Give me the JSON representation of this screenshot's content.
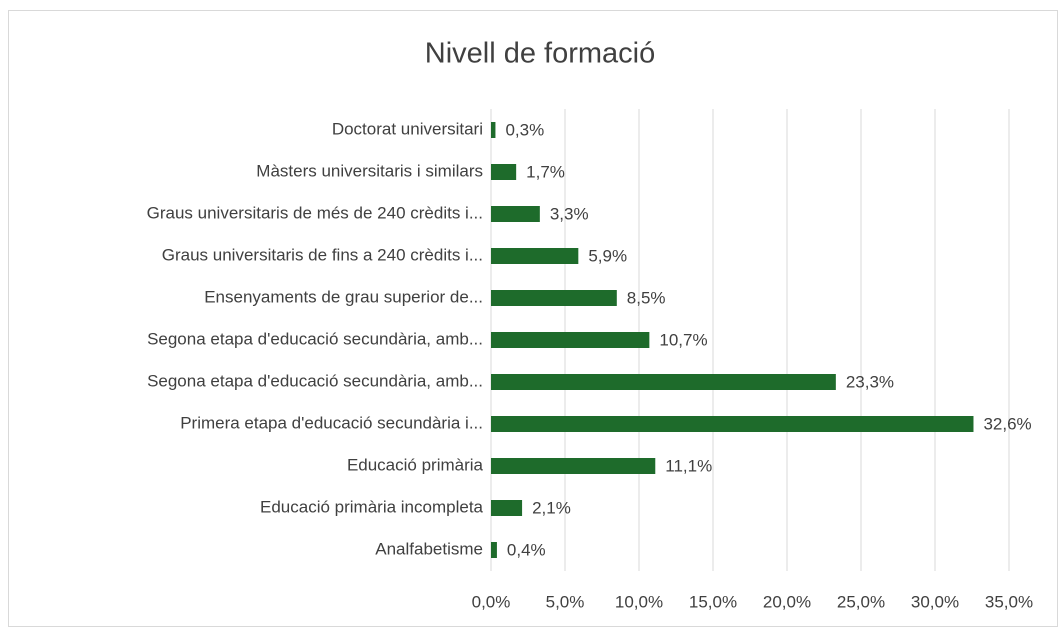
{
  "chart_data": {
    "type": "barh",
    "title": "Nivell de formació",
    "categories": [
      "Doctorat universitari",
      "Màsters universitaris i similars",
      "Graus universitaris de més de 240 crèdits i...",
      "Graus universitaris de fins a 240 crèdits i...",
      "Ensenyaments de grau superior de...",
      "Segona etapa d'educació secundària, amb...",
      "Segona etapa d'educació secundària, amb...",
      "Primera etapa d'educació secundària i...",
      "Educació primària",
      "Educació primària incompleta",
      "Analfabetisme"
    ],
    "values": [
      0.3,
      1.7,
      3.3,
      5.9,
      8.5,
      10.7,
      23.3,
      32.6,
      11.1,
      2.1,
      0.4
    ],
    "value_labels": [
      "0,3%",
      "1,7%",
      "3,3%",
      "5,9%",
      "8,5%",
      "10,7%",
      "23,3%",
      "32,6%",
      "11,1%",
      "2,1%",
      "0,4%"
    ],
    "color": "#1e6b2b",
    "xlim": [
      0,
      35
    ],
    "xticks": [
      {
        "value": 0,
        "label": "0,0%"
      },
      {
        "value": 5,
        "label": "5,0%"
      },
      {
        "value": 10,
        "label": "10,0%"
      },
      {
        "value": 15,
        "label": "15,0%"
      },
      {
        "value": 20,
        "label": "20,0%"
      },
      {
        "value": 25,
        "label": "25,0%"
      },
      {
        "value": 30,
        "label": "30,0%"
      },
      {
        "value": 35,
        "label": "35,0%"
      }
    ],
    "grid": true
  }
}
